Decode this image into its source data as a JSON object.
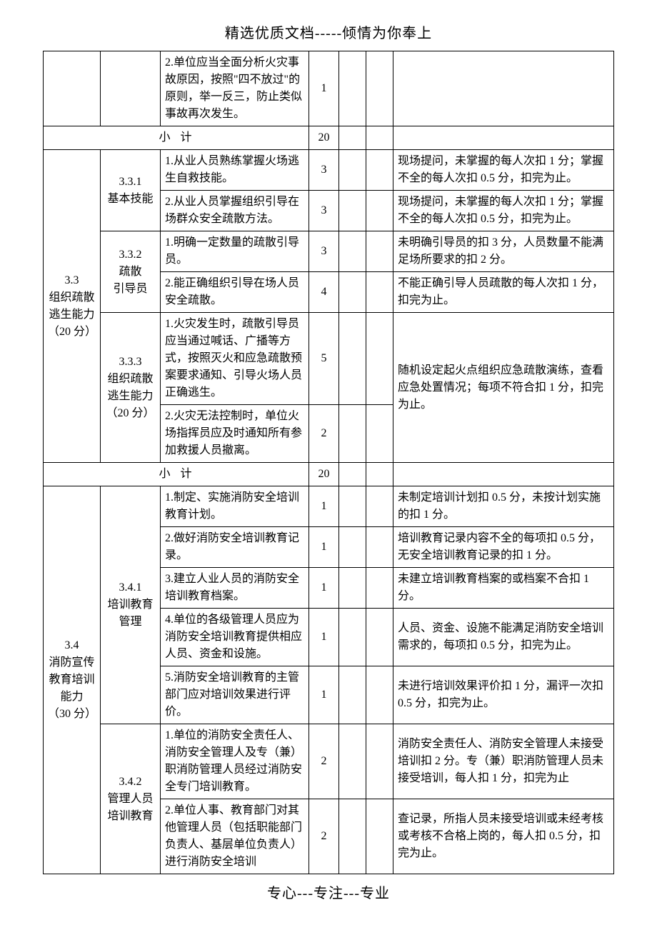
{
  "header": "精选优质文档-----倾情为你奉上",
  "footer": "专心---专注---专业",
  "rows": {
    "r1": {
      "text": "2.单位应当全面分析火灾事故原因，按照\"四不放过\"的原则，举一反三，防止类似事故再次发生。",
      "score": "1"
    },
    "sub1": {
      "label": "小计",
      "score": "20"
    },
    "sec33": {
      "title": "3.3\n组织疏散逃生能力\n（20 分）"
    },
    "sec331": {
      "title": "3.3.1\n基本技能"
    },
    "r331_1": {
      "text": "1.从业人员熟练掌握火场逃生自救技能。",
      "score": "3",
      "remark": "现场提问，未掌握的每人次扣 1 分；掌握不全的每人次扣 0.5 分，扣完为止。"
    },
    "r331_2": {
      "text": "2.从业人员掌握组织引导在场群众安全疏散方法。",
      "score": "3",
      "remark": "现场提问，未掌握的每人次扣 1 分；掌握不全的每人次扣 0.5 分，扣完为止。"
    },
    "sec332": {
      "title": "3.3.2\n疏散\n引导员"
    },
    "r332_1": {
      "text": "1.明确一定数量的疏散引导员。",
      "score": "3",
      "remark": "未明确引导员的扣 3 分，人员数量不能满足场所要求的扣 2 分。"
    },
    "r332_2": {
      "text": "2.能正确组织引导在场人员安全疏散。",
      "score": "4",
      "remark": "不能正确引导人员疏散的每人次扣 1 分，扣完为止。"
    },
    "sec333": {
      "title": "3.3.3\n组织疏散逃生能力\n（20 分）"
    },
    "r333_1": {
      "text": "1.火灾发生时，疏散引导员应当通过喊话、广播等方式，按照灭火和应急疏散预案要求通知、引导火场人员正确逃生。",
      "score": "5"
    },
    "r333_2": {
      "text": "2.火灾无法控制时，单位火场指挥员应及时通知所有参加救援人员撤离。",
      "score": "2"
    },
    "r333_remark": "随机设定起火点组织应急疏散演练，查看应急处置情况；每项不符合扣 1 分，扣完为止。",
    "sub2": {
      "label": "小计",
      "score": "20"
    },
    "sec34": {
      "title": "3.4\n消防宣传教育培训能力\n（30 分）"
    },
    "sec341": {
      "title": "3.4.1\n培训教育管理"
    },
    "r341_1": {
      "text": "1.制定、实施消防安全培训教育计划。",
      "score": "1",
      "remark": "未制定培训计划扣 0.5 分，未按计划实施的扣 1 分。"
    },
    "r341_2": {
      "text": "2.做好消防安全培训教育记录。",
      "score": "1",
      "remark": "培训教育记录内容不全的每项扣 0.5 分，无安全培训教育记录的扣 1 分。"
    },
    "r341_3": {
      "text": "3.建立人业人员的消防安全培训教育档案。",
      "score": "1",
      "remark": "未建立培训教育档案的或档案不合扣 1 分。"
    },
    "r341_4": {
      "text": "4.单位的各级管理人员应为消防安全培训教育提供相应人员、资金和设施。",
      "score": "1",
      "remark": "人员、资金、设施不能满足消防安全培训需求的，每项扣 0.5 分，扣完为止。"
    },
    "r341_5": {
      "text": "5.消防安全培训教育的主管部门应对培训效果进行评价。",
      "score": "1",
      "remark": "未进行培训效果评价扣 1 分，漏评一次扣 0.5 分，扣完为止。"
    },
    "sec342": {
      "title": "3.4.2\n管理人员培训教育"
    },
    "r342_1": {
      "text": "1.单位的消防安全责任人、消防安全管理人及专（兼）职消防管理人员经过消防安全专门培训教育。",
      "score": "2",
      "remark": "消防安全责任人、消防安全管理人未接受培训扣 2 分。专（兼）职消防管理人员未接受培训，每人扣 1 分，扣完为止"
    },
    "r342_2": {
      "text": "2.单位人事、教育部门对其他管理人员（包括职能部门负责人、基层单位负责人）进行消防安全培训",
      "score": "2",
      "remark": "查记录，所指人员未接受培训或未经考核或考核不合格上岗的，每人扣 0.5 分，扣完为止。"
    }
  }
}
